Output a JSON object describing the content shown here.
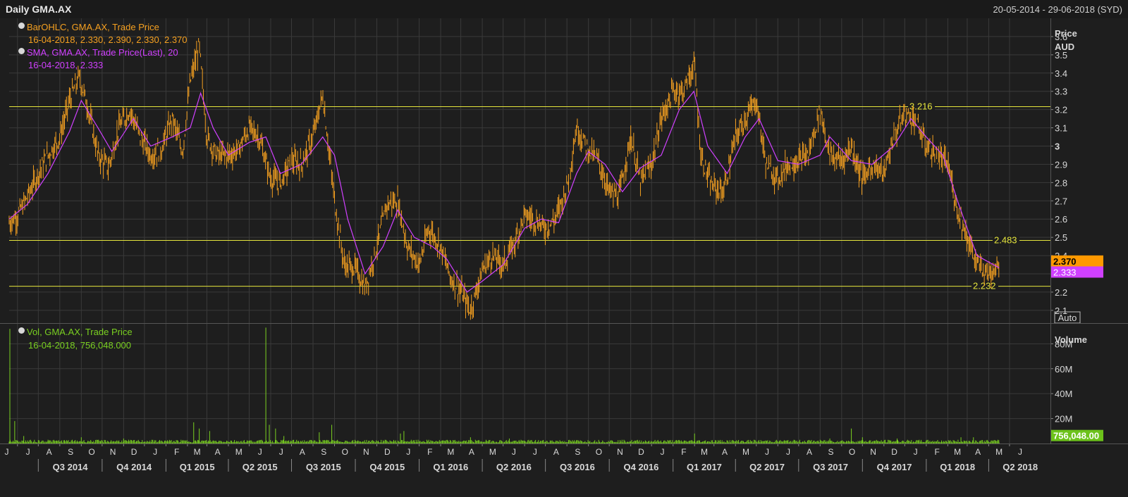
{
  "window": {
    "title": "Daily GMA.AX",
    "date_range": "20-05-2014 - 29-06-2018 (SYD)"
  },
  "legend": {
    "ohlc_name": "BarOHLC, GMA.AX, Trade Price",
    "ohlc_values": "16-04-2018, 2.330, 2.390, 2.330, 2.370",
    "sma_name": "SMA, GMA.AX, Trade Price(Last),  20",
    "sma_values": "16-04-2018, 2.333",
    "vol_name": "Vol, GMA.AX, Trade Price",
    "vol_values": "16-04-2018, 756,048.000"
  },
  "price_axis": {
    "title": "Price",
    "unit": "AUD",
    "ticks": [
      "3.6",
      "3.5",
      "3.4",
      "3.3",
      "3.2",
      "3.1",
      "3",
      "2.9",
      "2.8",
      "2.7",
      "2.6",
      "2.5",
      "2.4",
      "2.3",
      "2.2",
      "2.1"
    ],
    "auto_label": "Auto"
  },
  "volume_axis": {
    "title": "Volume",
    "ticks": [
      "80M",
      "60M",
      "40M",
      "20M"
    ]
  },
  "badges": {
    "last_price": "2.370",
    "sma_last": "2.333",
    "last_volume": "756,048.00"
  },
  "colors": {
    "background": "#1e1e1e",
    "grid": "#3a3a3a",
    "ohlc": "#f5a020",
    "sma": "#d040ff",
    "volume": "#7ad021",
    "hline": "#e6e63c",
    "text": "#d8d8d8"
  },
  "chart_data": {
    "type": "line",
    "title": "Daily GMA.AX",
    "x_range": [
      "2014-05-20",
      "2018-06-29"
    ],
    "ylabel": "Price AUD",
    "ylim": [
      2.03,
      3.7
    ],
    "grid": true,
    "legend": "top-left",
    "months": [
      "J",
      "J",
      "A",
      "S",
      "O",
      "N",
      "D",
      "J",
      "F",
      "M",
      "A",
      "M",
      "J",
      "J",
      "A",
      "S",
      "O",
      "N",
      "D",
      "J",
      "F",
      "M",
      "A",
      "M",
      "J",
      "J",
      "A",
      "S",
      "O",
      "N",
      "D",
      "J",
      "F",
      "M",
      "A",
      "M",
      "J",
      "J",
      "A",
      "S",
      "O",
      "N",
      "D",
      "J",
      "F",
      "M",
      "A",
      "M",
      "J"
    ],
    "quarters": [
      "Q3 2014",
      "Q4 2014",
      "Q1 2015",
      "Q2 2015",
      "Q3 2015",
      "Q4 2015",
      "Q1 2016",
      "Q2 2016",
      "Q3 2016",
      "Q4 2016",
      "Q1 2017",
      "Q2 2017",
      "Q3 2017",
      "Q4 2017",
      "Q1 2018",
      "Q2 2018"
    ],
    "horizontal_lines": [
      {
        "value": 3.216,
        "label": "3.216"
      },
      {
        "value": 2.483,
        "label": "2.483"
      },
      {
        "value": 2.232,
        "label": "2.232"
      }
    ],
    "series": [
      {
        "name": "BarOHLC, GMA.AX, Trade Price",
        "type": "ohlc_close",
        "points": [
          [
            "2014-05-20",
            2.58
          ],
          [
            "2014-06-01",
            2.62
          ],
          [
            "2014-06-15",
            2.72
          ],
          [
            "2014-07-01",
            2.85
          ],
          [
            "2014-07-15",
            2.95
          ],
          [
            "2014-08-01",
            3.05
          ],
          [
            "2014-08-15",
            3.25
          ],
          [
            "2014-08-29",
            3.38
          ],
          [
            "2014-09-10",
            3.22
          ],
          [
            "2014-09-25",
            2.95
          ],
          [
            "2014-10-10",
            2.88
          ],
          [
            "2014-10-25",
            3.1
          ],
          [
            "2014-11-10",
            3.2
          ],
          [
            "2014-11-25",
            3.05
          ],
          [
            "2014-12-10",
            2.95
          ],
          [
            "2014-12-25",
            2.98
          ],
          [
            "2015-01-10",
            3.15
          ],
          [
            "2015-01-25",
            2.97
          ],
          [
            "2015-02-05",
            3.35
          ],
          [
            "2015-02-18",
            3.55
          ],
          [
            "2015-03-01",
            3.05
          ],
          [
            "2015-03-15",
            2.95
          ],
          [
            "2015-04-01",
            2.95
          ],
          [
            "2015-04-15",
            2.98
          ],
          [
            "2015-05-01",
            3.1
          ],
          [
            "2015-05-15",
            3.05
          ],
          [
            "2015-06-01",
            2.82
          ],
          [
            "2015-06-15",
            2.8
          ],
          [
            "2015-07-01",
            2.92
          ],
          [
            "2015-07-15",
            2.9
          ],
          [
            "2015-08-01",
            3.05
          ],
          [
            "2015-08-15",
            3.28
          ],
          [
            "2015-09-01",
            2.7
          ],
          [
            "2015-09-15",
            2.35
          ],
          [
            "2015-10-01",
            2.33
          ],
          [
            "2015-10-15",
            2.22
          ],
          [
            "2015-11-01",
            2.45
          ],
          [
            "2015-11-15",
            2.68
          ],
          [
            "2015-12-01",
            2.7
          ],
          [
            "2015-12-15",
            2.45
          ],
          [
            "2016-01-01",
            2.35
          ],
          [
            "2016-01-15",
            2.55
          ],
          [
            "2016-02-01",
            2.45
          ],
          [
            "2016-02-15",
            2.28
          ],
          [
            "2016-03-01",
            2.2
          ],
          [
            "2016-03-15",
            2.1
          ],
          [
            "2016-04-01",
            2.32
          ],
          [
            "2016-04-15",
            2.4
          ],
          [
            "2016-05-01",
            2.35
          ],
          [
            "2016-05-15",
            2.45
          ],
          [
            "2016-06-01",
            2.62
          ],
          [
            "2016-06-15",
            2.6
          ],
          [
            "2016-07-01",
            2.55
          ],
          [
            "2016-07-15",
            2.6
          ],
          [
            "2016-08-01",
            2.78
          ],
          [
            "2016-08-15",
            3.1
          ],
          [
            "2016-09-01",
            2.98
          ],
          [
            "2016-09-15",
            2.92
          ],
          [
            "2016-10-01",
            2.75
          ],
          [
            "2016-10-15",
            2.72
          ],
          [
            "2016-11-01",
            3.05
          ],
          [
            "2016-11-15",
            2.8
          ],
          [
            "2016-12-01",
            2.9
          ],
          [
            "2016-12-15",
            3.15
          ],
          [
            "2017-01-01",
            3.3
          ],
          [
            "2017-01-15",
            3.3
          ],
          [
            "2017-02-01",
            3.45
          ],
          [
            "2017-02-10",
            2.95
          ],
          [
            "2017-02-25",
            2.78
          ],
          [
            "2017-03-15",
            2.75
          ],
          [
            "2017-04-01",
            3.05
          ],
          [
            "2017-04-15",
            3.15
          ],
          [
            "2017-05-01",
            3.25
          ],
          [
            "2017-05-15",
            2.9
          ],
          [
            "2017-06-01",
            2.82
          ],
          [
            "2017-06-15",
            2.9
          ],
          [
            "2017-07-01",
            2.92
          ],
          [
            "2017-07-15",
            2.95
          ],
          [
            "2017-08-01",
            3.2
          ],
          [
            "2017-08-15",
            2.95
          ],
          [
            "2017-09-01",
            2.92
          ],
          [
            "2017-09-15",
            3.0
          ],
          [
            "2017-10-01",
            2.82
          ],
          [
            "2017-10-15",
            2.9
          ],
          [
            "2017-11-01",
            2.85
          ],
          [
            "2017-11-15",
            3.05
          ],
          [
            "2017-12-01",
            3.18
          ],
          [
            "2017-12-15",
            3.15
          ],
          [
            "2018-01-01",
            3.0
          ],
          [
            "2018-01-15",
            2.95
          ],
          [
            "2018-02-01",
            2.9
          ],
          [
            "2018-02-15",
            2.65
          ],
          [
            "2018-03-01",
            2.5
          ],
          [
            "2018-03-15",
            2.35
          ],
          [
            "2018-04-01",
            2.3
          ],
          [
            "2018-04-16",
            2.37
          ]
        ]
      },
      {
        "name": "SMA, GMA.AX, Trade Price(Last),  20",
        "type": "line",
        "points": [
          [
            "2014-05-20",
            2.6
          ],
          [
            "2014-06-15",
            2.68
          ],
          [
            "2014-07-15",
            2.85
          ],
          [
            "2014-08-15",
            3.08
          ],
          [
            "2014-09-01",
            3.25
          ],
          [
            "2014-09-25",
            3.1
          ],
          [
            "2014-10-15",
            2.97
          ],
          [
            "2014-11-15",
            3.15
          ],
          [
            "2014-12-10",
            3.0
          ],
          [
            "2015-01-10",
            3.05
          ],
          [
            "2015-02-05",
            3.1
          ],
          [
            "2015-02-20",
            3.29
          ],
          [
            "2015-03-10",
            3.1
          ],
          [
            "2015-04-01",
            2.95
          ],
          [
            "2015-05-01",
            3.02
          ],
          [
            "2015-05-25",
            3.05
          ],
          [
            "2015-06-15",
            2.85
          ],
          [
            "2015-07-15",
            2.9
          ],
          [
            "2015-08-01",
            2.98
          ],
          [
            "2015-08-15",
            3.05
          ],
          [
            "2015-09-01",
            2.95
          ],
          [
            "2015-09-20",
            2.6
          ],
          [
            "2015-10-15",
            2.3
          ],
          [
            "2015-11-10",
            2.45
          ],
          [
            "2015-12-01",
            2.65
          ],
          [
            "2015-12-25",
            2.5
          ],
          [
            "2016-01-20",
            2.45
          ],
          [
            "2016-02-10",
            2.38
          ],
          [
            "2016-03-10",
            2.2
          ],
          [
            "2016-04-01",
            2.26
          ],
          [
            "2016-05-01",
            2.35
          ],
          [
            "2016-06-01",
            2.55
          ],
          [
            "2016-06-25",
            2.6
          ],
          [
            "2016-07-20",
            2.58
          ],
          [
            "2016-08-15",
            2.85
          ],
          [
            "2016-09-01",
            2.97
          ],
          [
            "2016-09-25",
            2.9
          ],
          [
            "2016-10-20",
            2.75
          ],
          [
            "2016-11-15",
            2.88
          ],
          [
            "2016-12-15",
            2.95
          ],
          [
            "2017-01-10",
            3.2
          ],
          [
            "2017-01-31",
            3.3
          ],
          [
            "2017-02-20",
            3.0
          ],
          [
            "2017-03-20",
            2.85
          ],
          [
            "2017-04-15",
            3.05
          ],
          [
            "2017-05-05",
            3.15
          ],
          [
            "2017-06-01",
            2.92
          ],
          [
            "2017-07-01",
            2.9
          ],
          [
            "2017-08-01",
            2.95
          ],
          [
            "2017-08-15",
            3.05
          ],
          [
            "2017-09-15",
            2.92
          ],
          [
            "2017-10-15",
            2.9
          ],
          [
            "2017-11-15",
            3.0
          ],
          [
            "2017-12-10",
            3.15
          ],
          [
            "2018-01-01",
            3.05
          ],
          [
            "2018-01-25",
            2.95
          ],
          [
            "2018-02-15",
            2.7
          ],
          [
            "2018-03-15",
            2.4
          ],
          [
            "2018-04-16",
            2.333
          ]
        ]
      },
      {
        "name": "Vol, GMA.AX, Trade Price",
        "type": "bar",
        "ylim_millions": [
          0,
          96
        ],
        "points_millions": [
          [
            "2014-05-21",
            92
          ],
          [
            "2014-05-28",
            18
          ],
          [
            "2014-06-10",
            6
          ],
          [
            "2014-07-15",
            3
          ],
          [
            "2014-09-01",
            5
          ],
          [
            "2014-11-01",
            4
          ],
          [
            "2015-02-10",
            17
          ],
          [
            "2015-02-18",
            12
          ],
          [
            "2015-03-05",
            10
          ],
          [
            "2015-05-25",
            93
          ],
          [
            "2015-05-30",
            15
          ],
          [
            "2015-06-08",
            12
          ],
          [
            "2015-06-20",
            6
          ],
          [
            "2015-08-10",
            9
          ],
          [
            "2015-08-28",
            15
          ],
          [
            "2015-12-05",
            8
          ],
          [
            "2015-12-10",
            10
          ],
          [
            "2016-03-15",
            5
          ],
          [
            "2016-05-10",
            4
          ],
          [
            "2017-02-01",
            8
          ],
          [
            "2017-08-15",
            4
          ],
          [
            "2017-09-15",
            12
          ],
          [
            "2017-10-01",
            5
          ],
          [
            "2017-11-20",
            4
          ],
          [
            "2018-02-20",
            5
          ],
          [
            "2018-03-10",
            5
          ],
          [
            "2018-04-16",
            0.756
          ]
        ]
      }
    ]
  }
}
